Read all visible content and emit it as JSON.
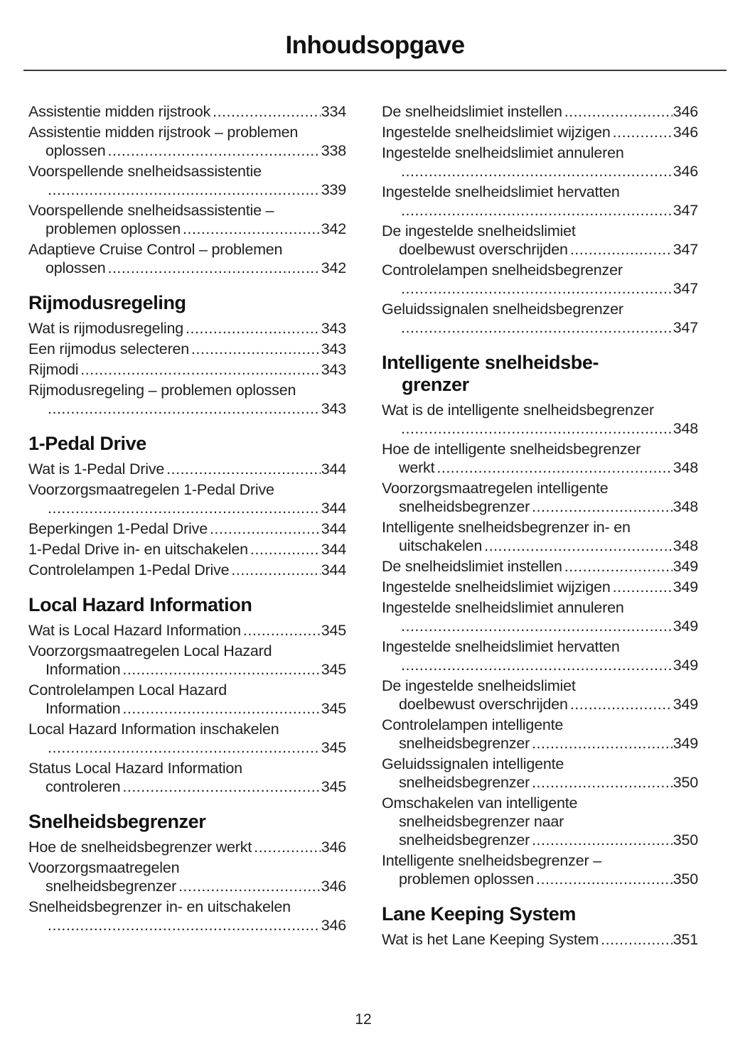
{
  "page": {
    "title": "Inhoudsopgave",
    "page_number": "12"
  },
  "colors": {
    "background": "#ffffff",
    "text": "#1f1f21",
    "heading": "#121212",
    "divider": "#3a3a3a"
  },
  "columns": [
    {
      "sections": [
        {
          "heading_lines": [],
          "entries": [
            {
              "lines": [
                "Assistentie midden rijstrook"
              ],
              "page": "334"
            },
            {
              "lines": [
                "Assistentie midden rijstrook – problemen",
                "oplossen"
              ],
              "page": "338"
            },
            {
              "lines": [
                "Voorspellende snelheidsassistentie",
                ""
              ],
              "page": "339"
            },
            {
              "lines": [
                "Voorspellende snelheidsassistentie –",
                "problemen oplossen"
              ],
              "page": "342"
            },
            {
              "lines": [
                "Adaptieve Cruise Control – problemen",
                "oplossen"
              ],
              "page": "342"
            }
          ]
        },
        {
          "heading_lines": [
            "Rijmodusregeling"
          ],
          "entries": [
            {
              "lines": [
                "Wat is rijmodusregeling"
              ],
              "page": "343"
            },
            {
              "lines": [
                "Een rijmodus selecteren"
              ],
              "page": "343"
            },
            {
              "lines": [
                "Rijmodi"
              ],
              "page": "343"
            },
            {
              "lines": [
                "Rijmodusregeling – problemen oplossen",
                ""
              ],
              "page": "343"
            }
          ]
        },
        {
          "heading_lines": [
            "1-Pedal Drive"
          ],
          "entries": [
            {
              "lines": [
                "Wat is 1-Pedal Drive"
              ],
              "page": "344"
            },
            {
              "lines": [
                "Voorzorgsmaatregelen 1-Pedal Drive",
                ""
              ],
              "page": "344"
            },
            {
              "lines": [
                "Beperkingen 1-Pedal Drive"
              ],
              "page": "344"
            },
            {
              "lines": [
                "1-Pedal Drive in- en uitschakelen"
              ],
              "page": "344"
            },
            {
              "lines": [
                "Controlelampen 1-Pedal Drive"
              ],
              "page": "344"
            }
          ]
        },
        {
          "heading_lines": [
            "Local Hazard Information"
          ],
          "entries": [
            {
              "lines": [
                "Wat is Local Hazard Information"
              ],
              "page": "345"
            },
            {
              "lines": [
                "Voorzorgsmaatregelen Local Hazard",
                "Information"
              ],
              "page": "345"
            },
            {
              "lines": [
                "Controlelampen Local Hazard",
                "Information"
              ],
              "page": "345"
            },
            {
              "lines": [
                "Local Hazard Information inschakelen",
                ""
              ],
              "page": "345"
            },
            {
              "lines": [
                "Status Local Hazard Information",
                "controleren"
              ],
              "page": "345"
            }
          ]
        },
        {
          "heading_lines": [
            "Snelheidsbegrenzer"
          ],
          "entries": [
            {
              "lines": [
                "Hoe de snelheidsbegrenzer werkt"
              ],
              "page": "346"
            },
            {
              "lines": [
                "Voorzorgsmaatregelen",
                "snelheidsbegrenzer"
              ],
              "page": "346"
            },
            {
              "lines": [
                "Snelheidsbegrenzer in- en uitschakelen",
                ""
              ],
              "page": "346"
            }
          ]
        }
      ]
    },
    {
      "sections": [
        {
          "heading_lines": [],
          "entries": [
            {
              "lines": [
                "De snelheidslimiet instellen"
              ],
              "page": "346"
            },
            {
              "lines": [
                "Ingestelde snelheidslimiet wijzigen"
              ],
              "page": "346"
            },
            {
              "lines": [
                "Ingestelde snelheidslimiet annuleren",
                ""
              ],
              "page": "346"
            },
            {
              "lines": [
                "Ingestelde snelheidslimiet hervatten",
                ""
              ],
              "page": "347"
            },
            {
              "lines": [
                "De ingestelde snelheidslimiet",
                "doelbewust overschrijden"
              ],
              "page": "347"
            },
            {
              "lines": [
                "Controlelampen snelheidsbegrenzer",
                ""
              ],
              "page": "347"
            },
            {
              "lines": [
                "Geluidssignalen snelheidsbegrenzer",
                ""
              ],
              "page": "347"
            }
          ]
        },
        {
          "heading_lines": [
            "Intelligente snelheidsbe-",
            "grenzer"
          ],
          "entries": [
            {
              "lines": [
                "Wat is de intelligente snelheidsbegrenzer",
                ""
              ],
              "page": "348"
            },
            {
              "lines": [
                "Hoe de intelligente snelheidsbegrenzer",
                "werkt"
              ],
              "page": "348"
            },
            {
              "lines": [
                "Voorzorgsmaatregelen intelligente",
                "snelheidsbegrenzer"
              ],
              "page": "348"
            },
            {
              "lines": [
                "Intelligente snelheidsbegrenzer in- en",
                "uitschakelen"
              ],
              "page": "348"
            },
            {
              "lines": [
                "De snelheidslimiet instellen"
              ],
              "page": "349"
            },
            {
              "lines": [
                "Ingestelde snelheidslimiet wijzigen"
              ],
              "page": "349"
            },
            {
              "lines": [
                "Ingestelde snelheidslimiet annuleren",
                ""
              ],
              "page": "349"
            },
            {
              "lines": [
                "Ingestelde snelheidslimiet hervatten",
                ""
              ],
              "page": "349"
            },
            {
              "lines": [
                "De ingestelde snelheidslimiet",
                "doelbewust overschrijden"
              ],
              "page": "349"
            },
            {
              "lines": [
                "Controlelampen intelligente",
                "snelheidsbegrenzer"
              ],
              "page": "349"
            },
            {
              "lines": [
                "Geluidssignalen intelligente",
                "snelheidsbegrenzer"
              ],
              "page": "350"
            },
            {
              "lines": [
                "Omschakelen van intelligente",
                "snelheidsbegrenzer naar",
                "snelheidsbegrenzer"
              ],
              "page": "350"
            },
            {
              "lines": [
                "Intelligente snelheidsbegrenzer –",
                "problemen oplossen"
              ],
              "page": "350"
            }
          ]
        },
        {
          "heading_lines": [
            "Lane Keeping System"
          ],
          "entries": [
            {
              "lines": [
                "Wat is het Lane Keeping System"
              ],
              "page": "351"
            }
          ]
        }
      ]
    }
  ]
}
